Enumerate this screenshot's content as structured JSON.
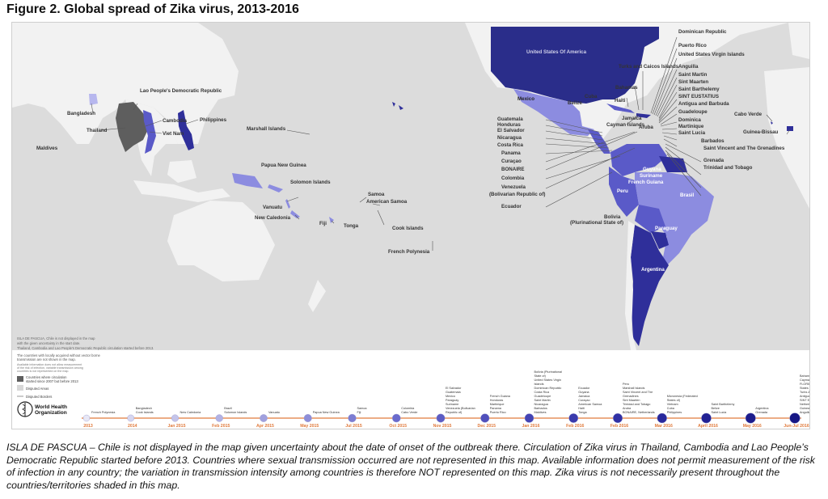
{
  "title": "Figure 2. Global spread of Zika virus, 2013-2016",
  "colors": {
    "ocean": "#dcdcdc",
    "land": "#f2f2f2",
    "usa": "#2a2d8a",
    "dark_blue": "#2f2f9a",
    "mid_blue": "#5a5ac8",
    "light_blue": "#8c8ce0",
    "pale_blue": "#b7b7ee",
    "grey_asia": "#5e5e5e",
    "timeline": "#e07a3c"
  },
  "map_labels": {
    "usa": "United States Of America",
    "mexico": "Mexico",
    "belize": "Belize",
    "cuba": "Cuba",
    "bahamas": "Bahamas",
    "haiti": "Haiti",
    "jamaica": "Jamaica",
    "cayman": "Cayman Islands",
    "aruba": "Aruba",
    "turks": "Turks and Caicos Islands",
    "guatemala": "Guatemala",
    "honduras": "Honduras",
    "el_salvador": "El Salvador",
    "nicaragua": "Nicaragua",
    "costa_rica": "Costa Rica",
    "panama": "Panama",
    "curacao": "Curaçao",
    "bonaire": "BONAIRE",
    "colombia": "Colombia",
    "venezuela": "Venezuela",
    "venezuela2": "(Bolivarian Republic of)",
    "ecuador": "Ecuador",
    "bolivia": "Bolivia",
    "bolivia2": "(Plurinational State of)",
    "guyana": "Guyana",
    "suriname": "Suriname",
    "french_guiana": "French Guiana",
    "brasil": "Brasil",
    "peru": "Peru",
    "paraguay": "Paraguay",
    "argentina": "Argentina",
    "dominican": "Dominican Republic",
    "puerto_rico": "Puerto Rico",
    "usvi": "United States Virgin Islands",
    "anguilla": "Anguilla",
    "saint_martin": "Saint Martin",
    "sint_maarten": "Sint Maarten",
    "saint_barth": "Saint Barthelemy",
    "sint_eustatius": "SINT EUSTATIUS",
    "antigua": "Antigua and Barbuda",
    "guadeloupe": "Guadeloupe",
    "dominica": "Dominica",
    "martinique": "Martinique",
    "saint_lucia": "Saint Lucia",
    "barbados": "Barbados",
    "saint_vincent": "Saint Vincent and The Grenadines",
    "grenada": "Grenada",
    "trinidad": "Trinidad and Tobago",
    "cabo_verde": "Cabo Verde",
    "guinea_bissau": "Guinea-Bissau",
    "lao": "Lao People's Democratic Republic",
    "bangladesh": "Bangladesh",
    "thailand": "Thailand",
    "cambodia": "Cambodia",
    "viet_nam": "Viet Nam",
    "philippines": "Philippines",
    "maldives": "Maldives",
    "marshall": "Marshall Islands",
    "png": "Papua New Guinea",
    "solomon": "Solomon Islands",
    "vanuatu": "Vanuatu",
    "new_caledonia": "New Caledonia",
    "fiji": "Fiji",
    "tonga": "Tonga",
    "samoa": "Samoa",
    "american_samoa": "American Samoa",
    "cook": "Cook Islands",
    "french_polynesia": "French Polynesia"
  },
  "map_note": [
    "ISLA DE PASCUA, Chile is not displayed in the map",
    "with the given uncertainty in the start date.",
    "Thailand, Cambodia and Lao People's Democratic Republic circulation started before 2013."
  ],
  "legend": {
    "heading": [
      "The countries with locally acquired without vector borne",
      "transmission are not shown in the map."
    ],
    "subnote": [
      "Available information does not allow measurement",
      "of the risk of infection, variable transmission among",
      "countries is not represented on the map."
    ],
    "circulation_label": [
      "Countries where circulation",
      "started since 2007 but before 2013"
    ],
    "disputed_areas": "Disputed Areas",
    "disputed_borders": "Disputed Borders",
    "who_line1": "World Health",
    "who_line2": "Organization"
  },
  "timeline": [
    {
      "period": "2013",
      "countries": [
        "French Polynesia"
      ]
    },
    {
      "period": "2014",
      "countries": [
        "Bangladesh",
        "Cook Islands"
      ]
    },
    {
      "period": "Jan 2015",
      "countries": [
        "New Caledonia"
      ]
    },
    {
      "period": "Feb 2015",
      "countries": [
        "Brazil",
        "Solomon Islands"
      ]
    },
    {
      "period": "Apr 2015",
      "countries": [
        "Vanuatu"
      ]
    },
    {
      "period": "May 2015",
      "countries": [
        "Papua New Guinea"
      ]
    },
    {
      "period": "Jul 2015",
      "countries": [
        "Samoa",
        "Fiji"
      ]
    },
    {
      "period": "Oct 2015",
      "countries": [
        "Colombia",
        "Cabo Verde"
      ]
    },
    {
      "period": "Nov 2015",
      "countries": [
        "El Salvador",
        "Guatemala",
        "Mexico",
        "Paraguay",
        "Suriname",
        "Venezuela (Bolivarian",
        "Republic of)"
      ]
    },
    {
      "period": "Dec 2015",
      "countries": [
        "French Guiana",
        "Honduras",
        "Martinique",
        "Panama",
        "Puerto Rico"
      ]
    },
    {
      "period": "Jan 2016",
      "countries": [
        "Bolivia (Plurinational",
        "State of)",
        "United States Virgin",
        "Islands",
        "Dominican Republic",
        "Costa Rica",
        "Guadeloupe",
        "Saint Martin",
        "Nicaragua",
        "Barbados",
        "Maldives"
      ]
    },
    {
      "period": "Feb 2016",
      "countries": [
        "Ecuador",
        "Guyana",
        "Jamaica",
        "Curaçao",
        "American Samoa",
        "Haiti",
        "Tonga"
      ]
    },
    {
      "period": "Feb 2016",
      "countries": [
        "Peru",
        "Marshall Islands",
        "Saint Vincent and The",
        "Grenadines",
        "Sint Maarten",
        "Trinidad and Tobago",
        "Aruba",
        "BONAIRE, Netherlands"
      ]
    },
    {
      "period": "Mar 2016",
      "countries": [
        "Micronesia (Federated",
        "States of)",
        "Vietnam",
        "Cuba",
        "Philippines"
      ]
    },
    {
      "period": "April 2016",
      "countries": [
        "Saint Barthelemy",
        "Belize",
        "Saint Lucia"
      ]
    },
    {
      "period": "May 2016",
      "countries": [
        "Argentina",
        "Grenada"
      ]
    },
    {
      "period": "Jun-Jul 2016",
      "countries": [
        "Bahamas",
        "Cayman Islands",
        "FLORIDA, United",
        "States of America",
        "Turks & Caicos Islands",
        "Antigua & Barbuda",
        "SINT EUSTATIUS,",
        "Netherlands",
        "Guinea Bissau",
        "Anguilla"
      ]
    }
  ],
  "caption": "ISLA DE PASCUA – Chile is not displayed in the map given uncertainty about the date of onset of the outbreak there. Circulation of Zika virus in Thailand, Cambodia and Lao People’s Democratic Republic started before 2013. Countries where sexual transmission occurred are not represented in this map. Available information does not permit measurement of the risk of infection in any country; the variation in transmission intensity among countries is therefore NOT represented on this map. Zika virus is not necessarily present throughout the countries/territories shaded in this map."
}
